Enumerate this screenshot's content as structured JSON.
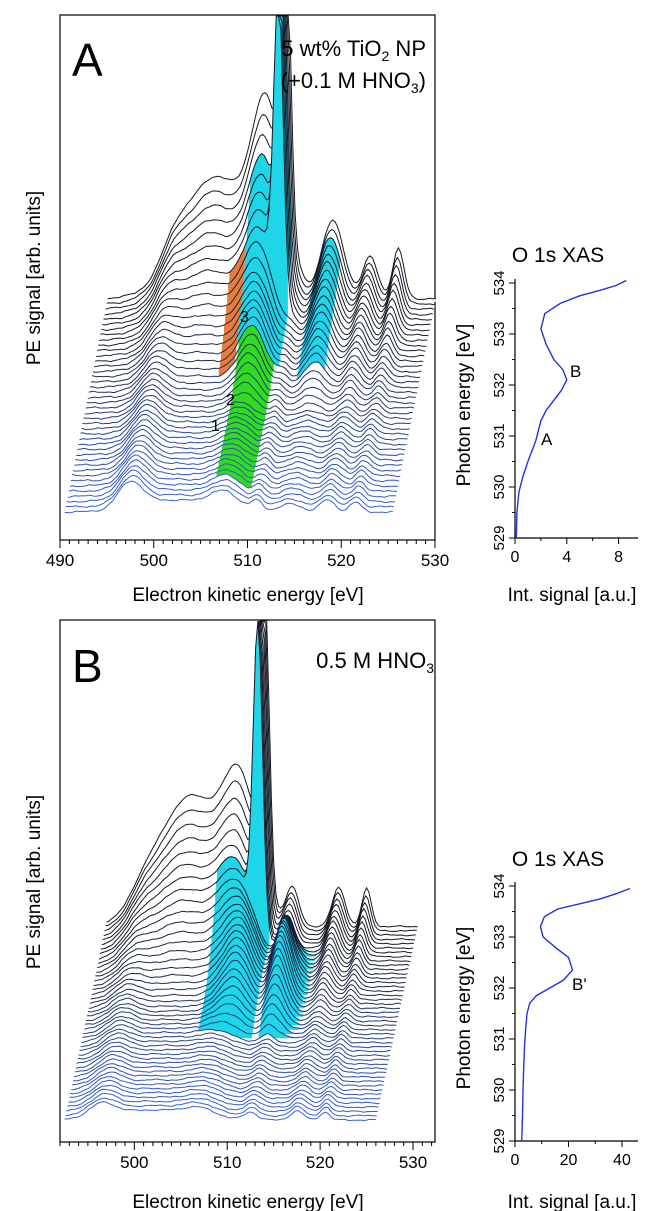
{
  "panels": {
    "A": {
      "letter": "A",
      "sample": {
        "line1": "5 wt% TiO",
        "sub": "2",
        "line1_tail": " NP",
        "line2_head": "(+0.1 M HNO",
        "line2_sub": "3",
        "line2_tail": ")"
      },
      "ylabel": "PE signal [arb. units]",
      "xlabel": "Electron kinetic energy [eV]",
      "xticks": [
        "490",
        "500",
        "510",
        "520",
        "530"
      ],
      "peak_labels": [
        "1",
        "2",
        "3"
      ]
    },
    "B": {
      "letter": "B",
      "sample": {
        "line1_head": "0.5 M HNO",
        "line1_sub": "3"
      },
      "ylabel": "PE signal [arb. units]",
      "xlabel": "Electron kinetic energy [eV]",
      "xticks": [
        "500",
        "510",
        "520",
        "530"
      ]
    }
  },
  "chart_data": [
    {
      "type": "line",
      "title": "O 1s XAS",
      "xlabel": "Int. signal [a.u.]",
      "ylabel": "Photon energy [eV]",
      "xticks": [
        "0",
        "4",
        "8"
      ],
      "yticks": [
        "529",
        "530",
        "531",
        "532",
        "533",
        "534"
      ],
      "xlim": [
        0,
        9.5
      ],
      "ylim": [
        529,
        534
      ],
      "annotations": [
        "A",
        "B"
      ],
      "series": [
        {
          "x": [
            0.1,
            0.15,
            0.3,
            0.6,
            1.0,
            1.3,
            1.6,
            1.8,
            2.0,
            2.4,
            3.0,
            3.6,
            4.0,
            3.7,
            3.0,
            2.4,
            2.0,
            2.3,
            3.5,
            5.0,
            6.5,
            7.8,
            8.6
          ],
          "y": [
            529.0,
            529.5,
            529.9,
            530.2,
            530.5,
            530.7,
            530.9,
            531.1,
            531.3,
            531.5,
            531.7,
            531.9,
            532.1,
            532.3,
            532.5,
            532.8,
            533.1,
            533.4,
            533.6,
            533.75,
            533.85,
            533.95,
            534.05
          ]
        }
      ]
    },
    {
      "type": "line",
      "title": "O 1s XAS",
      "xlabel": "Int. signal [a.u.]",
      "ylabel": "Photon energy [eV]",
      "xticks": [
        "0",
        "20",
        "40"
      ],
      "yticks": [
        "529",
        "530",
        "531",
        "532",
        "533",
        "534"
      ],
      "xlim": [
        0,
        46
      ],
      "ylim": [
        529,
        534
      ],
      "annotations": [
        "B'"
      ],
      "series": [
        {
          "x": [
            2.5,
            2.8,
            3.0,
            3.3,
            3.6,
            4.0,
            4.5,
            5.5,
            8.0,
            13.0,
            18.0,
            21.5,
            20.0,
            15.0,
            10.5,
            9.5,
            11.0,
            16.0,
            24.0,
            32.0,
            38.0,
            43.0
          ],
          "y": [
            529.0,
            529.5,
            530.0,
            530.5,
            530.9,
            531.2,
            531.5,
            531.7,
            531.85,
            532.0,
            532.15,
            532.35,
            532.6,
            532.8,
            533.0,
            533.2,
            533.4,
            533.55,
            533.65,
            533.75,
            533.85,
            533.95
          ]
        }
      ]
    }
  ]
}
